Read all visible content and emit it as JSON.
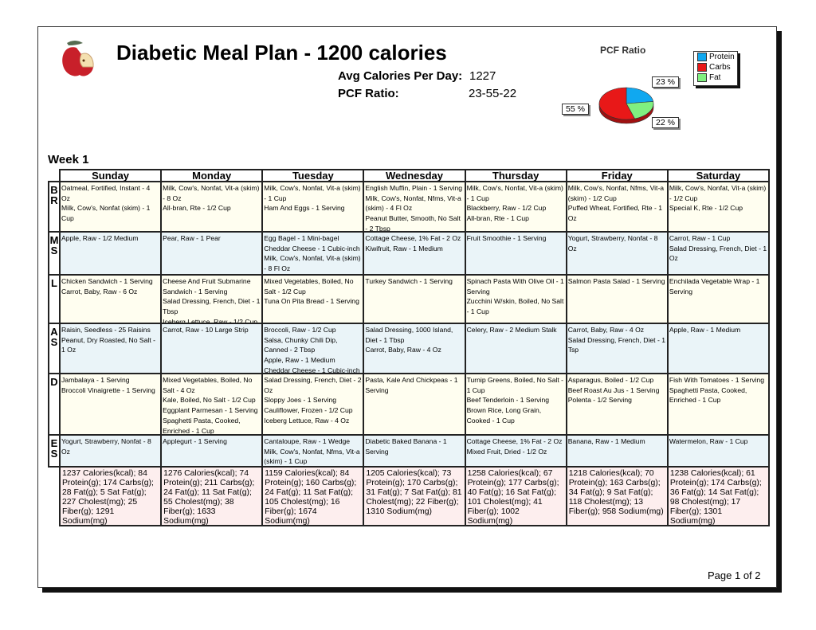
{
  "header": {
    "title": "Diabetic Meal Plan - 1200 calories",
    "avg_calories_label": "Avg Calories Per Day:",
    "avg_calories_value": "1227",
    "pcf_label": "PCF Ratio:",
    "pcf_value": "23-55-22",
    "logo_icon": "apple-icon"
  },
  "pcf_chart": {
    "title": "PCF Ratio",
    "type": "pie",
    "slices": [
      {
        "name": "Protein",
        "value": 23,
        "label": "23 %",
        "color": "#10a8f0"
      },
      {
        "name": "Fat",
        "value": 22,
        "label": "22 %",
        "color": "#80f080"
      },
      {
        "name": "Carbs",
        "value": 55,
        "label": "55 %",
        "color": "#e81818"
      }
    ],
    "legend": [
      "Protein",
      "Carbs",
      "Fat"
    ]
  },
  "week_label": "Week 1",
  "days": [
    "Sunday",
    "Monday",
    "Tuesday",
    "Wednesday",
    "Thursday",
    "Friday",
    "Saturday"
  ],
  "rows": [
    {
      "label": [
        "B",
        "R"
      ],
      "cells": [
        [
          "Oatmeal, Fortified, Instant - 4 Oz",
          "Milk, Cow's, Nonfat (skim) - 1 Cup"
        ],
        [
          "Milk, Cow's, Nonfat, Vit-a (skim) - 8 Oz",
          "All-bran, Rte - 1/2 Cup"
        ],
        [
          "Milk, Cow's, Nonfat, Vit-a (skim) - 1 Cup",
          "Ham And Eggs - 1 Serving"
        ],
        [
          "English Muffin, Plain - 1 Serving",
          "Milk, Cow's, Nonfat, Nfms, Vit-a (skim) - 4 Fl Oz",
          "Peanut Butter, Smooth, No Salt - 2 Tbsp"
        ],
        [
          "Milk, Cow's, Nonfat, Vit-a (skim) - 1 Cup",
          "Blackberry, Raw - 1/2 Cup",
          "All-bran, Rte - 1 Cup"
        ],
        [
          "Milk, Cow's, Nonfat, Nfms, Vit-a (skim) - 1/2 Cup",
          "Puffed Wheat, Fortified, Rte - 1 Oz"
        ],
        [
          "Milk, Cow's, Nonfat, Vit-a (skim) - 1/2 Cup",
          "Special K, Rte - 1/2 Cup"
        ]
      ]
    },
    {
      "label": [
        "M",
        "S"
      ],
      "cells": [
        [
          "Apple, Raw - 1/2 Medium"
        ],
        [
          "Pear, Raw - 1 Pear"
        ],
        [
          "Egg Bagel - 1 Mini-bagel",
          "Cheddar Cheese - 1 Cubic-inch",
          "Milk, Cow's, Nonfat, Vit-a (skim) - 8 Fl Oz"
        ],
        [
          "Cottage Cheese, 1% Fat - 2 Oz",
          "Kiwifruit, Raw - 1 Medium"
        ],
        [
          "Fruit Smoothie - 1 Serving"
        ],
        [
          "Yogurt, Strawberry, Nonfat - 8 Oz"
        ],
        [
          "Carrot, Raw - 1 Cup",
          "Salad Dressing, French, Diet - 1 Oz"
        ]
      ]
    },
    {
      "label": [
        "L"
      ],
      "cells": [
        [
          "Chicken Sandwich - 1 Serving",
          "Carrot, Baby, Raw - 6 Oz"
        ],
        [
          "Cheese And Fruit Submarine Sandwich - 1 Serving",
          "Salad Dressing, French, Diet - 1 Tbsp",
          "Iceberg Lettuce, Raw - 1/2 Cup"
        ],
        [
          "Mixed Vegetables, Boiled, No Salt - 1/2 Cup",
          "Tuna On Pita Bread - 1 Serving"
        ],
        [
          "Turkey Sandwich - 1 Serving"
        ],
        [
          "Spinach Pasta With Olive Oil - 1 Serving",
          "Zucchini W/skin, Boiled, No Salt - 1 Cup"
        ],
        [
          "Salmon Pasta Salad - 1 Serving"
        ],
        [
          "Enchilada Vegetable Wrap - 1 Serving"
        ]
      ]
    },
    {
      "label": [
        "A",
        "S"
      ],
      "cells": [
        [
          "Raisin, Seedless - 25 Raisins",
          "Peanut, Dry Roasted, No Salt - 1 Oz"
        ],
        [
          "Carrot, Raw - 10 Large Strip"
        ],
        [
          "Broccoli, Raw - 1/2 Cup",
          "Salsa, Chunky Chili Dip, Canned - 2 Tbsp",
          "Apple, Raw - 1 Medium",
          "Cheddar Cheese - 1 Cubic-inch"
        ],
        [
          "Salad Dressing, 1000 Island, Diet - 1 Tbsp",
          "Carrot, Baby, Raw - 4 Oz"
        ],
        [
          "Celery, Raw - 2 Medium Stalk"
        ],
        [
          "Carrot, Baby, Raw - 4 Oz",
          "Salad Dressing, French, Diet - 1 Tsp"
        ],
        [
          "Apple, Raw - 1 Medium"
        ]
      ]
    },
    {
      "label": [
        "D"
      ],
      "cells": [
        [
          "Jambalaya - 1 Serving",
          "Broccoli Vinaigrette - 1 Serving"
        ],
        [
          "Mixed Vegetables, Boiled, No Salt - 4 Oz",
          "Kale, Boiled, No Salt - 1/2 Cup",
          "Eggplant Parmesan - 1 Serving",
          "Spaghetti Pasta, Cooked, Enriched - 1 Cup"
        ],
        [
          "Salad Dressing, French, Diet - 2 Oz",
          "Sloppy Joes - 1 Serving",
          "Cauliflower, Frozen - 1/2 Cup",
          "Iceberg Lettuce, Raw - 4 Oz"
        ],
        [
          "Pasta, Kale And Chickpeas - 1 Serving"
        ],
        [
          "Turnip Greens, Boiled, No Salt - 1 Cup",
          "Beef Tenderloin - 1 Serving",
          "Brown Rice, Long Grain, Cooked - 1 Cup"
        ],
        [
          "Asparagus, Boiled - 1/2 Cup",
          "Beef Roast Au Jus - 1 Serving",
          "Polenta - 1/2 Serving"
        ],
        [
          "Fish With Tomatoes - 1 Serving",
          "Spaghetti Pasta, Cooked, Enriched - 1 Cup"
        ]
      ]
    },
    {
      "label": [
        "E",
        "S"
      ],
      "cells": [
        [
          "Yogurt, Strawberry, Nonfat - 8 Oz"
        ],
        [
          "Applegurt - 1 Serving"
        ],
        [
          "Cantaloupe, Raw - 1 Wedge",
          "Milk, Cow's, Nonfat, Nfms, Vit-a (skim) - 1 Cup"
        ],
        [
          "Diabetic Baked Banana - 1 Serving"
        ],
        [
          "Cottage Cheese, 1% Fat - 2 Oz",
          "Mixed Fruit, Dried - 1/2 Oz"
        ],
        [
          "Banana, Raw - 1 Medium"
        ],
        [
          "Watermelon, Raw - 1 Cup"
        ]
      ]
    }
  ],
  "totals": [
    "1237 Calories(kcal); 84 Protein(g); 174 Carbs(g); 28 Fat(g); 5 Sat Fat(g); 227 Cholest(mg); 25 Fiber(g); 1291 Sodium(mg)",
    "1276 Calories(kcal); 74 Protein(g); 211 Carbs(g); 24 Fat(g); 11 Sat Fat(g); 55 Cholest(mg); 38 Fiber(g); 1633 Sodium(mg)",
    "1159 Calories(kcal); 84 Protein(g); 160 Carbs(g); 24 Fat(g); 11 Sat Fat(g); 105 Cholest(mg); 16 Fiber(g); 1674 Sodium(mg)",
    "1205 Calories(kcal); 73 Protein(g); 170 Carbs(g); 31 Fat(g); 7 Sat Fat(g); 81 Cholest(mg); 22 Fiber(g); 1310 Sodium(mg)",
    "1258 Calories(kcal); 67 Protein(g); 177 Carbs(g); 40 Fat(g); 16 Sat Fat(g); 101 Cholest(mg); 41 Fiber(g); 1002 Sodium(mg)",
    "1218 Calories(kcal); 70 Protein(g); 163 Carbs(g); 34 Fat(g); 9 Sat Fat(g); 118 Cholest(mg); 13 Fiber(g); 958 Sodium(mg)",
    "1238 Calories(kcal); 61 Protein(g); 174 Carbs(g); 36 Fat(g); 14 Sat Fat(g); 98 Cholest(mg); 17 Fiber(g); 1301 Sodium(mg)"
  ],
  "footer": {
    "page": "Page 1 of 2"
  }
}
